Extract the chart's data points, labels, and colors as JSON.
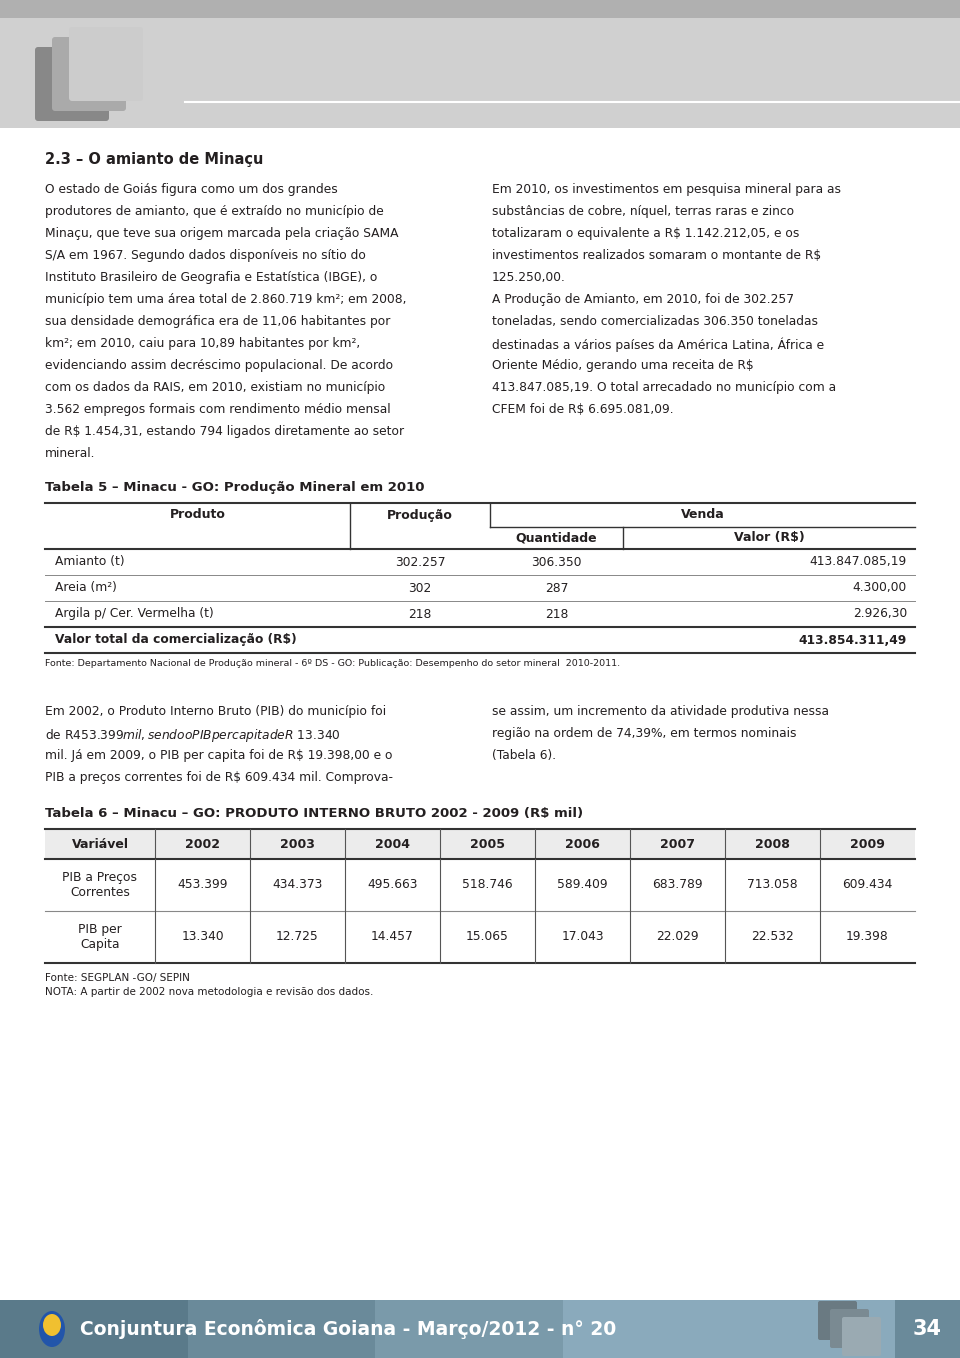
{
  "title_section": "2.3 – O amianto de Minaçu",
  "para_left_1_lines": [
    "O estado de Goiás figura como um dos grandes",
    "produtores de amianto, que é extraído no município de",
    "Minaçu, que teve sua origem marcada pela criação SAMA",
    "S/A em 1967. Segundo dados disponíveis no sítio do",
    "Instituto Brasileiro de Geografia e Estatística (IBGE), o",
    "município tem uma área total de 2.860.719 km²; em 2008,",
    "sua densidade demográfica era de 11,06 habitantes por",
    "km²; em 2010, caiu para 10,89 habitantes por km²,",
    "evidenciando assim decréscimo populacional. De acordo",
    "com os dados da RAIS, em 2010, existiam no município",
    "3.562 empregos formais com rendimento médio mensal",
    "de R$ 1.454,31, estando 794 ligados diretamente ao setor",
    "mineral."
  ],
  "para_right_1_lines": [
    "Em 2010, os investimentos em pesquisa mineral para as",
    "substâncias de cobre, níquel, terras raras e zinco",
    "totalizaram o equivalente a R$ 1.142.212,05, e os",
    "investimentos realizados somaram o montante de R$",
    "125.250,00.",
    "A Produção de Amianto, em 2010, foi de 302.257",
    "toneladas, sendo comercializadas 306.350 toneladas",
    "destinadas a vários países da América Latina, África e",
    "Oriente Médio, gerando uma receita de R$",
    "413.847.085,19. O total arrecadado no município com a",
    "CFEM foi de R$ 6.695.081,09."
  ],
  "table5_title": "Tabela 5 – Minacu - GO: Produção Mineral em 2010",
  "table5_rows": [
    [
      "Amianto (t)",
      "302.257",
      "306.350",
      "413.847.085,19"
    ],
    [
      "Areia (m²)",
      "302",
      "287",
      "4.300,00"
    ],
    [
      "Argila p/ Cer. Vermelha (t)",
      "218",
      "218",
      "2.926,30"
    ]
  ],
  "table5_total_label": "Valor total da comercialização (R$)",
  "table5_total_value": "413.854.311,49",
  "table5_fonte": "Fonte: Departamento Nacional de Produção mineral - 6º DS - GO: Publicação: Desempenho do setor mineral  2010-2011.",
  "para_left_2_lines": [
    "Em 2002, o Produto Interno Bruto (PIB) do município foi",
    "de R$ 453.399 mil, sendo o PIB per capita de R$ 13.340",
    "mil. Já em 2009, o PIB per capita foi de R$ 19.398,00 e o",
    "PIB a preços correntes foi de R$ 609.434 mil. Comprova-"
  ],
  "para_right_2_lines": [
    "se assim, um incremento da atividade produtiva nessa",
    "região na ordem de 74,39%, em termos nominais",
    "(Tabela 6)."
  ],
  "table6_title": "Tabela 6 – Minacu – GO: PRODUTO INTERNO BRUTO 2002 - 2009 (R$ mil)",
  "table6_headers": [
    "Variável",
    "2002",
    "2003",
    "2004",
    "2005",
    "2006",
    "2007",
    "2008",
    "2009"
  ],
  "table6_row1_label": "PIB a Preços\nCorrentes",
  "table6_row1": [
    "453.399",
    "434.373",
    "495.663",
    "518.746",
    "589.409",
    "683.789",
    "713.058",
    "609.434"
  ],
  "table6_row2_label": "PIB per\nCapita",
  "table6_row2": [
    "13.340",
    "12.725",
    "14.457",
    "15.065",
    "17.043",
    "22.029",
    "22.532",
    "19.398"
  ],
  "table6_fonte1": "Fonte: SEGPLAN -GO/ SEPIN",
  "table6_fonte2": "NOTA: A partir de 2002 nova metodologia e revisão dos dados.",
  "footer_text": "Conjuntura Econômica Goiana - Março/2012 - n° 20",
  "footer_page": "34",
  "bg_color": "#ffffff",
  "text_color": "#231f20"
}
